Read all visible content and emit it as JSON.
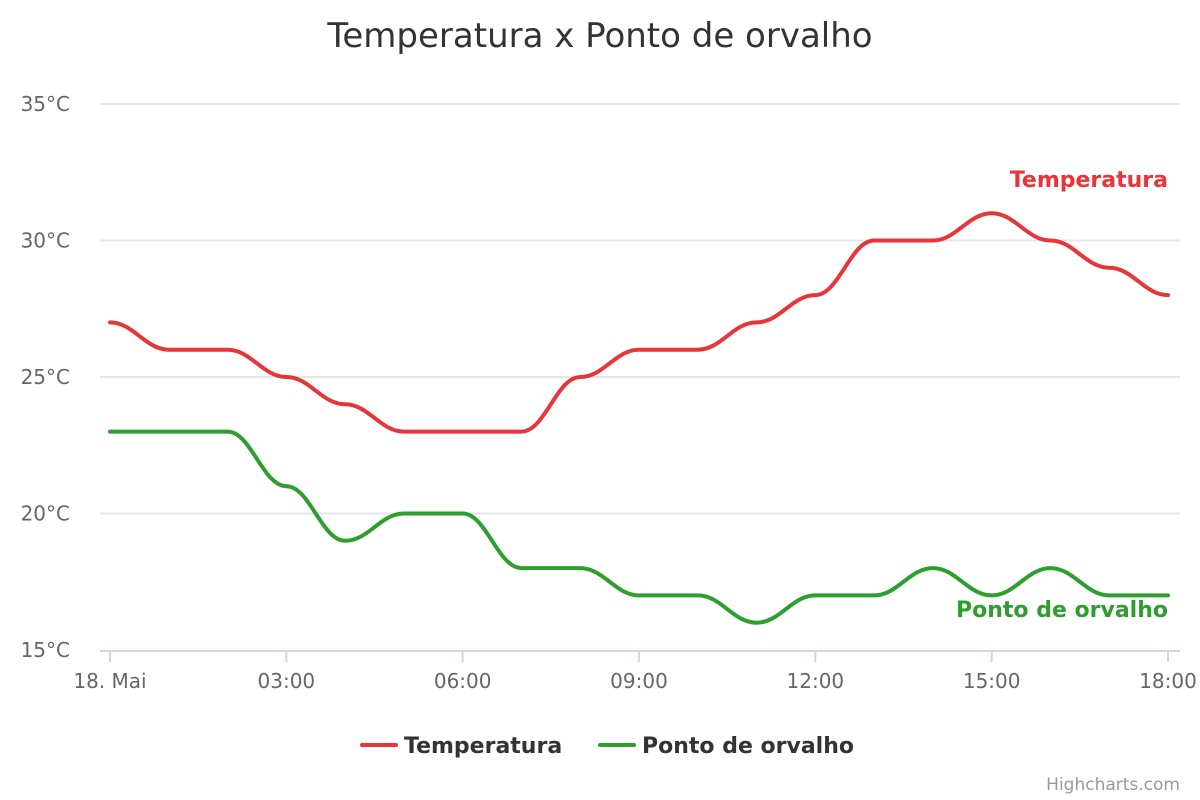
{
  "chart_data": {
    "type": "line",
    "title": "Temperatura x Ponto de orvalho",
    "x": [
      "00:00",
      "01:00",
      "02:00",
      "03:00",
      "04:00",
      "05:00",
      "06:00",
      "07:00",
      "08:00",
      "09:00",
      "10:00",
      "11:00",
      "12:00",
      "13:00",
      "14:00",
      "15:00",
      "16:00",
      "17:00",
      "18:00"
    ],
    "x_ticks": [
      {
        "hour": 0,
        "label": "18. Mai"
      },
      {
        "hour": 3,
        "label": "03:00"
      },
      {
        "hour": 6,
        "label": "06:00"
      },
      {
        "hour": 9,
        "label": "09:00"
      },
      {
        "hour": 12,
        "label": "12:00"
      },
      {
        "hour": 15,
        "label": "15:00"
      },
      {
        "hour": 18,
        "label": "18:00"
      }
    ],
    "ylim": [
      15,
      35
    ],
    "y_ticks": [
      {
        "value": 15,
        "label": "15°C"
      },
      {
        "value": 20,
        "label": "20°C"
      },
      {
        "value": 25,
        "label": "25°C"
      },
      {
        "value": 30,
        "label": "30°C"
      },
      {
        "value": 35,
        "label": "35°C"
      }
    ],
    "grid": true,
    "legend_placement": "bottom-center",
    "series": [
      {
        "name": "Temperatura",
        "color": "#e8353a",
        "values": [
          27,
          26,
          26,
          25,
          24,
          23,
          23,
          23,
          25,
          26,
          26,
          27,
          28,
          30,
          30,
          31,
          30,
          29,
          28
        ]
      },
      {
        "name": "Ponto de orvalho",
        "color": "#2e9e2e",
        "values": [
          23,
          23,
          23,
          21,
          19,
          20,
          20,
          18,
          18,
          17,
          17,
          16,
          17,
          17,
          18,
          17,
          18,
          17,
          17
        ]
      }
    ],
    "credits": "Highcharts.com"
  }
}
